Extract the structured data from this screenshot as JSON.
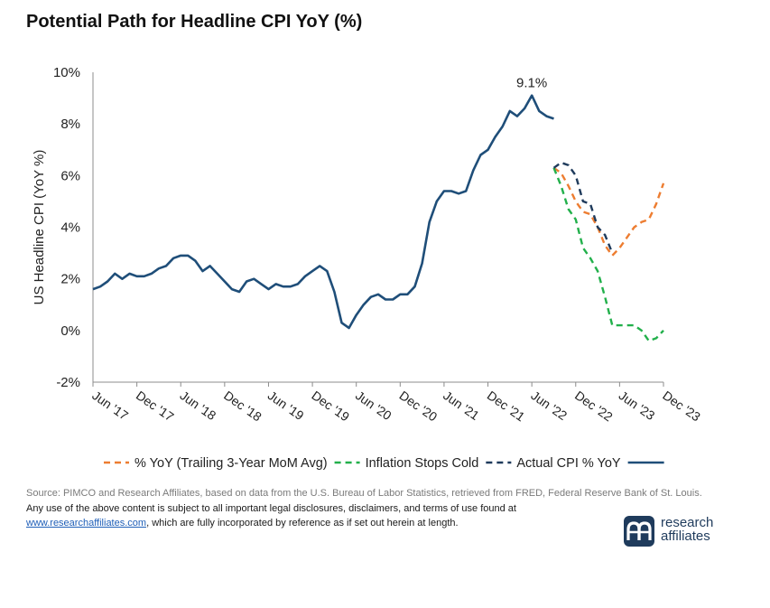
{
  "title": "Potential Path for Headline CPI YoY (%)",
  "chart_data": {
    "type": "line",
    "ylabel": "US Headline CPI (YoY %)",
    "xlabel": "",
    "ylim": [
      -2,
      10
    ],
    "yticks": [
      -2,
      0,
      2,
      4,
      6,
      8,
      10
    ],
    "ytick_labels": [
      "-2%",
      "0%",
      "2%",
      "4%",
      "6%",
      "8%",
      "10%"
    ],
    "x_range": [
      "2017-06",
      "2023-12"
    ],
    "xticks": [
      "2017-06",
      "2017-12",
      "2018-06",
      "2018-12",
      "2019-06",
      "2019-12",
      "2020-06",
      "2020-12",
      "2021-06",
      "2021-12",
      "2022-06",
      "2022-12",
      "2023-06",
      "2023-12"
    ],
    "xtick_labels": [
      "Jun '17",
      "Dec '17",
      "Jun '18",
      "Dec '18",
      "Jun '19",
      "Dec '19",
      "Jun '20",
      "Dec '20",
      "Jun '21",
      "Dec '21",
      "Jun '22",
      "Dec '22",
      "Jun '23",
      "Dec '23"
    ],
    "grid": false,
    "legend_position": "bottom",
    "annotations": [
      {
        "text": "9.1%",
        "x": "2022-06",
        "y": 9.1
      }
    ],
    "series": [
      {
        "name": "% YoY (Trailing 3-Year MoM Avg)",
        "color": "#ed7d31",
        "style": "dashed",
        "x": [
          "2022-09",
          "2022-10",
          "2022-11",
          "2022-12",
          "2023-01",
          "2023-02",
          "2023-03",
          "2023-04",
          "2023-05",
          "2023-06",
          "2023-07",
          "2023-08",
          "2023-09",
          "2023-10",
          "2023-11",
          "2023-12"
        ],
        "values": [
          6.3,
          6.1,
          5.6,
          5.0,
          4.6,
          4.5,
          4.0,
          3.3,
          2.9,
          3.2,
          3.6,
          4.0,
          4.2,
          4.3,
          4.9,
          5.7
        ]
      },
      {
        "name": "Inflation Stops Cold",
        "color": "#22b04b",
        "style": "dashed",
        "x": [
          "2022-09",
          "2022-10",
          "2022-11",
          "2022-12",
          "2023-01",
          "2023-02",
          "2023-03",
          "2023-04",
          "2023-05",
          "2023-06",
          "2023-07",
          "2023-08",
          "2023-09",
          "2023-10",
          "2023-11",
          "2023-12"
        ],
        "values": [
          6.3,
          5.6,
          4.7,
          4.3,
          3.2,
          2.8,
          2.3,
          1.3,
          0.2,
          0.2,
          0.2,
          0.2,
          0.0,
          -0.4,
          -0.3,
          0.0
        ]
      },
      {
        "name": "Actual CPI % YoY",
        "color": "#1f3b5c",
        "style": "dashed",
        "x": [
          "2022-09",
          "2022-10",
          "2022-11",
          "2022-12",
          "2023-01",
          "2023-02",
          "2023-03",
          "2023-04",
          "2023-05"
        ],
        "values": [
          6.3,
          6.5,
          6.4,
          6.0,
          5.0,
          4.9,
          4.0,
          3.7,
          3.0
        ]
      },
      {
        "name": "",
        "color": "#1f4e79",
        "style": "solid",
        "x": [
          "2017-06",
          "2017-07",
          "2017-08",
          "2017-09",
          "2017-10",
          "2017-11",
          "2017-12",
          "2018-01",
          "2018-02",
          "2018-03",
          "2018-04",
          "2018-05",
          "2018-06",
          "2018-07",
          "2018-08",
          "2018-09",
          "2018-10",
          "2018-11",
          "2018-12",
          "2019-01",
          "2019-02",
          "2019-03",
          "2019-04",
          "2019-05",
          "2019-06",
          "2019-07",
          "2019-08",
          "2019-09",
          "2019-10",
          "2019-11",
          "2019-12",
          "2020-01",
          "2020-02",
          "2020-03",
          "2020-04",
          "2020-05",
          "2020-06",
          "2020-07",
          "2020-08",
          "2020-09",
          "2020-10",
          "2020-11",
          "2020-12",
          "2021-01",
          "2021-02",
          "2021-03",
          "2021-04",
          "2021-05",
          "2021-06",
          "2021-07",
          "2021-08",
          "2021-09",
          "2021-10",
          "2021-11",
          "2021-12",
          "2022-01",
          "2022-02",
          "2022-03",
          "2022-04",
          "2022-05",
          "2022-06",
          "2022-07",
          "2022-08",
          "2022-09"
        ],
        "values": [
          1.6,
          1.7,
          1.9,
          2.2,
          2.0,
          2.2,
          2.1,
          2.1,
          2.2,
          2.4,
          2.5,
          2.8,
          2.9,
          2.9,
          2.7,
          2.3,
          2.5,
          2.2,
          1.9,
          1.6,
          1.5,
          1.9,
          2.0,
          1.8,
          1.6,
          1.8,
          1.7,
          1.7,
          1.8,
          2.1,
          2.3,
          2.5,
          2.3,
          1.5,
          0.3,
          0.1,
          0.6,
          1.0,
          1.3,
          1.4,
          1.2,
          1.2,
          1.4,
          1.4,
          1.7,
          2.6,
          4.2,
          5.0,
          5.4,
          5.4,
          5.3,
          5.4,
          6.2,
          6.8,
          7.0,
          7.5,
          7.9,
          8.5,
          8.3,
          8.6,
          9.1,
          8.5,
          8.3,
          8.2
        ]
      }
    ]
  },
  "footer": {
    "source": "Source: PIMCO and Research Affiliates, based on data from the U.S. Bureau of Labor Statistics, retrieved from FRED, Federal Reserve Bank of St. Louis.",
    "disclaimer_before": "Any use of the above content is subject to all important legal disclosures, disclaimers, and terms of use found at",
    "link_text": "www.researchaffiliates.com",
    "disclaimer_after": ", which are fully incorporated by reference as if set out herein at length."
  },
  "logo": {
    "icon": "research-affiliates-logo-icon",
    "line1": "research",
    "line2": "affiliates",
    "color": "#1f3b5c"
  }
}
